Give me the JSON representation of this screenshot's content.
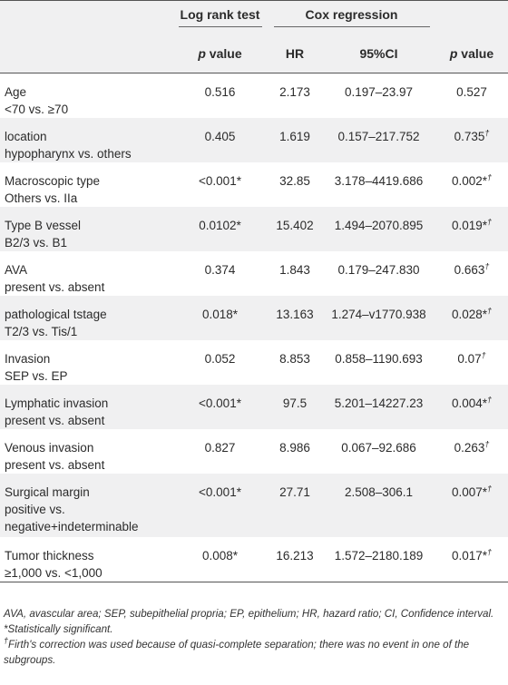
{
  "header": {
    "log_rank": "Log rank test",
    "cox": "Cox regression",
    "p_value_italic": "p",
    "p_value_rest": " value",
    "hr": "HR",
    "ci": "95%CI"
  },
  "rows": [
    {
      "name": "Age",
      "sub": "<70 vs. ≥70",
      "lr": "0.516",
      "hr": "2.173",
      "ci": "0.197–23.97",
      "p": "0.527",
      "psup": ""
    },
    {
      "name": "location",
      "sub": "hypopharynx vs. others",
      "lr": "0.405",
      "hr": "1.619",
      "ci": "0.157–217.752",
      "p": "0.735",
      "psup": "†"
    },
    {
      "name": "Macroscopic type",
      "sub": "Others vs. IIa",
      "lr": "<0.001*",
      "hr": "32.85",
      "ci": "3.178–4419.686",
      "p": "0.002*",
      "psup": "†"
    },
    {
      "name": "Type B vessel",
      "sub": "B2/3 vs. B1",
      "lr": "0.0102*",
      "hr": "15.402",
      "ci": "1.494–2070.895",
      "p": "0.019*",
      "psup": "†"
    },
    {
      "name": "AVA",
      "sub": "present vs. absent",
      "lr": "0.374",
      "hr": "1.843",
      "ci": "0.179–247.830",
      "p": "0.663",
      "psup": "†"
    },
    {
      "name": "pathological tstage",
      "sub": "T2/3 vs. Tis/1",
      "lr": "0.018*",
      "hr": "13.163",
      "ci": "1.274–v1770.938",
      "p": "0.028*",
      "psup": "†"
    },
    {
      "name": "Invasion",
      "sub": "SEP vs. EP",
      "lr": "0.052",
      "hr": "8.853",
      "ci": "0.858–1190.693",
      "p": "0.07",
      "psup": "†"
    },
    {
      "name": "Lymphatic invasion",
      "sub": "present vs. absent",
      "lr": "<0.001*",
      "hr": "97.5",
      "ci": "5.201–14227.23",
      "p": "0.004*",
      "psup": "†"
    },
    {
      "name": "Venous invasion",
      "sub": "present vs. absent",
      "lr": "0.827",
      "hr": "8.986",
      "ci": "0.067–92.686",
      "p": "0.263",
      "psup": "†"
    },
    {
      "name": "Surgical margin",
      "sub": "positive vs.",
      "sub2": "negative+indeterminable",
      "lr": "<0.001*",
      "hr": "27.71",
      "ci": "2.508–306.1",
      "p": "0.007*",
      "psup": "†"
    },
    {
      "name": "Tumor thickness",
      "sub": "≥1,000 vs. <1,000",
      "lr": "0.008*",
      "hr": "16.213",
      "ci": "1.572–2180.189",
      "p": "0.017*",
      "psup": "†"
    }
  ],
  "notes": {
    "abbrev": "AVA, avascular area; SEP, subepithelial propria; EP, epithelium; HR, hazard ratio; CI, Confidence interval.",
    "star": "*Statistically significant.",
    "dagger_mark": "†",
    "dagger": "Firth's correction was used because of quasi-complete separation; there was no event in one of the subgroups."
  }
}
